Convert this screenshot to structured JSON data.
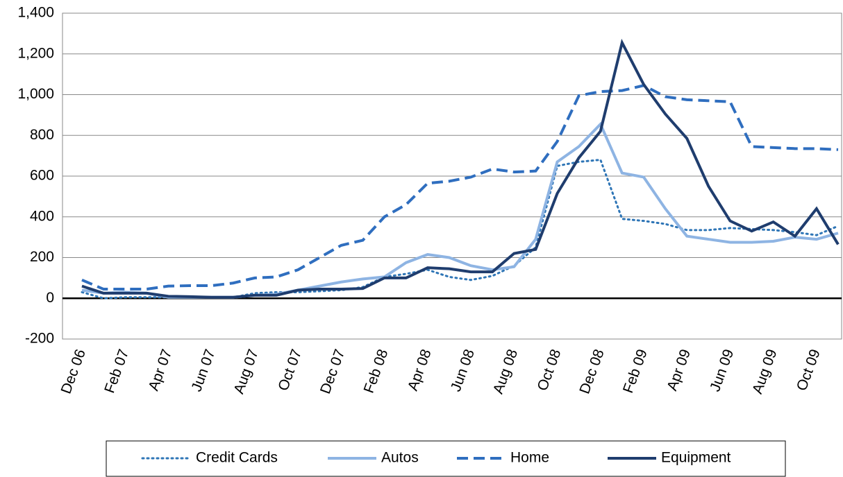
{
  "chart_data": {
    "type": "line",
    "categories": [
      "Dec 06",
      null,
      "Feb 07",
      null,
      "Apr 07",
      null,
      "Jun 07",
      null,
      "Aug 07",
      null,
      "Oct 07",
      null,
      "Dec 07",
      null,
      "Feb 08",
      null,
      "Apr 08",
      null,
      "Jun 08",
      null,
      "Aug 08",
      null,
      "Oct 08",
      null,
      "Dec 08",
      null,
      "Feb 09",
      null,
      "Apr 09",
      null,
      "Jun 09",
      null,
      "Aug 09",
      null,
      "Oct 09",
      null
    ],
    "series": [
      {
        "name": "Credit Cards",
        "color": "#2e75b6",
        "dash": "dotted",
        "values": [
          30,
          0,
          5,
          5,
          5,
          5,
          5,
          5,
          25,
          30,
          30,
          35,
          40,
          55,
          105,
          120,
          140,
          105,
          90,
          110,
          160,
          250,
          650,
          670,
          680,
          390,
          380,
          365,
          335,
          335,
          345,
          340,
          335,
          325,
          310,
          355
        ]
      },
      {
        "name": "Autos",
        "color": "#8eb4e3",
        "dash": "solid",
        "values": [
          40,
          25,
          30,
          25,
          5,
          5,
          5,
          5,
          15,
          20,
          40,
          60,
          80,
          95,
          105,
          175,
          215,
          200,
          160,
          140,
          155,
          290,
          670,
          745,
          855,
          615,
          595,
          440,
          305,
          290,
          275,
          275,
          280,
          300,
          290,
          320
        ]
      },
      {
        "name": "Home",
        "color": "#2f6ebf",
        "dash": "dashed",
        "values": [
          90,
          45,
          45,
          45,
          60,
          62,
          62,
          75,
          100,
          105,
          140,
          200,
          260,
          285,
          400,
          460,
          565,
          575,
          595,
          635,
          620,
          625,
          770,
          995,
          1015,
          1020,
          1045,
          990,
          975,
          970,
          965,
          745,
          740,
          735,
          735,
          730
        ]
      },
      {
        "name": "Equipment",
        "color": "#1f3d6e",
        "dash": "solid",
        "values": [
          60,
          25,
          25,
          25,
          10,
          8,
          5,
          5,
          15,
          15,
          40,
          45,
          45,
          48,
          100,
          100,
          150,
          145,
          130,
          130,
          220,
          240,
          515,
          690,
          820,
          1255,
          1050,
          905,
          785,
          550,
          380,
          330,
          375,
          305,
          440,
          265
        ]
      }
    ],
    "ylim": [
      -200,
      1400
    ],
    "yticks": [
      {
        "value": -200,
        "label": "-200"
      },
      0,
      200,
      400,
      600,
      800,
      {
        "value": 1000,
        "label": "1,000"
      },
      {
        "value": 1200,
        "label": "1,200"
      },
      {
        "value": 1400,
        "label": "1,400"
      }
    ],
    "grid": true,
    "legend": "bottom"
  }
}
